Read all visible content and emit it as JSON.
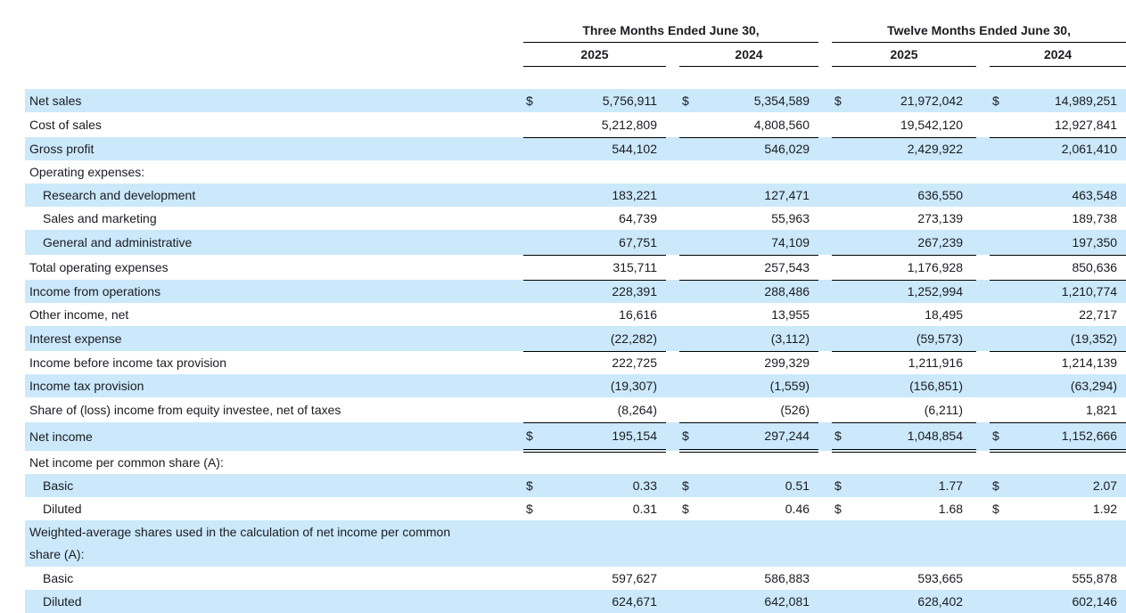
{
  "document": {
    "dollar_sign": "$",
    "group_headers": [
      "Three Months Ended June 30,",
      "Twelve Months Ended June 30,"
    ],
    "year_headers": [
      "2025",
      "2024",
      "2025",
      "2024"
    ],
    "rows": [
      {
        "label": "Net sales",
        "indent": false,
        "shaded": true,
        "dollar": true,
        "border": null,
        "values": [
          "5,756,911",
          "5,354,589",
          "21,972,042",
          "14,989,251"
        ]
      },
      {
        "label": "Cost of sales",
        "indent": false,
        "shaded": false,
        "dollar": false,
        "border": "single",
        "values": [
          "5,212,809",
          "4,808,560",
          "19,542,120",
          "12,927,841"
        ]
      },
      {
        "label": "Gross profit",
        "indent": false,
        "shaded": true,
        "dollar": false,
        "border": null,
        "values": [
          "544,102",
          "546,029",
          "2,429,922",
          "2,061,410"
        ]
      },
      {
        "label": "Operating expenses:",
        "indent": false,
        "shaded": false,
        "dollar": false,
        "border": null,
        "values": null
      },
      {
        "label": "Research and development",
        "indent": true,
        "shaded": true,
        "dollar": false,
        "border": null,
        "values": [
          "183,221",
          "127,471",
          "636,550",
          "463,548"
        ]
      },
      {
        "label": "Sales and marketing",
        "indent": true,
        "shaded": false,
        "dollar": false,
        "border": null,
        "values": [
          "64,739",
          "55,963",
          "273,139",
          "189,738"
        ]
      },
      {
        "label": "General and administrative",
        "indent": true,
        "shaded": true,
        "dollar": false,
        "border": "single",
        "values": [
          "67,751",
          "74,109",
          "267,239",
          "197,350"
        ]
      },
      {
        "label": "Total operating expenses",
        "indent": false,
        "shaded": false,
        "dollar": false,
        "border": "single",
        "values": [
          "315,711",
          "257,543",
          "1,176,928",
          "850,636"
        ]
      },
      {
        "label": "Income from operations",
        "indent": false,
        "shaded": true,
        "dollar": false,
        "border": null,
        "values": [
          "228,391",
          "288,486",
          "1,252,994",
          "1,210,774"
        ]
      },
      {
        "label": "Other income, net",
        "indent": false,
        "shaded": false,
        "dollar": false,
        "border": null,
        "values": [
          "16,616",
          "13,955",
          "18,495",
          "22,717"
        ]
      },
      {
        "label": "Interest expense",
        "indent": false,
        "shaded": true,
        "dollar": false,
        "border": "single",
        "values": [
          "(22,282)",
          "(3,112)",
          "(59,573)",
          "(19,352)"
        ]
      },
      {
        "label": "Income before income tax provision",
        "indent": false,
        "shaded": false,
        "dollar": false,
        "border": null,
        "values": [
          "222,725",
          "299,329",
          "1,211,916",
          "1,214,139"
        ]
      },
      {
        "label": "Income tax provision",
        "indent": false,
        "shaded": true,
        "dollar": false,
        "border": null,
        "values": [
          "(19,307)",
          "(1,559)",
          "(156,851)",
          "(63,294)"
        ]
      },
      {
        "label": "Share of (loss) income from equity investee, net of taxes",
        "indent": false,
        "shaded": false,
        "dollar": false,
        "border": "single",
        "values": [
          "(8,264)",
          "(526)",
          "(6,211)",
          "1,821"
        ]
      },
      {
        "label": "Net income",
        "indent": false,
        "shaded": true,
        "dollar": true,
        "border": "double",
        "values": [
          "195,154",
          "297,244",
          "1,048,854",
          "1,152,666"
        ]
      },
      {
        "label": "Net income per common share (A):",
        "indent": false,
        "shaded": false,
        "dollar": false,
        "border": null,
        "values": null
      },
      {
        "label": "Basic",
        "indent": true,
        "shaded": true,
        "dollar": true,
        "border": null,
        "values": [
          "0.33",
          "0.51",
          "1.77",
          "2.07"
        ]
      },
      {
        "label": "Diluted",
        "indent": true,
        "shaded": false,
        "dollar": true,
        "border": null,
        "values": [
          "0.31",
          "0.46",
          "1.68",
          "1.92"
        ]
      },
      {
        "label": "Weighted-average shares used in the calculation of net income per common share (A):",
        "indent": false,
        "shaded": true,
        "dollar": false,
        "border": null,
        "tall": true,
        "values": null
      },
      {
        "label": "Basic",
        "indent": true,
        "shaded": false,
        "dollar": false,
        "border": null,
        "values": [
          "597,627",
          "586,883",
          "593,665",
          "555,878"
        ]
      },
      {
        "label": "Diluted",
        "indent": true,
        "shaded": true,
        "dollar": false,
        "border": null,
        "values": [
          "624,671",
          "642,081",
          "628,402",
          "602,146"
        ]
      }
    ]
  },
  "colors": {
    "row_highlight": "#cbe9fb",
    "text": "#1b1b22",
    "border": "#000000"
  }
}
